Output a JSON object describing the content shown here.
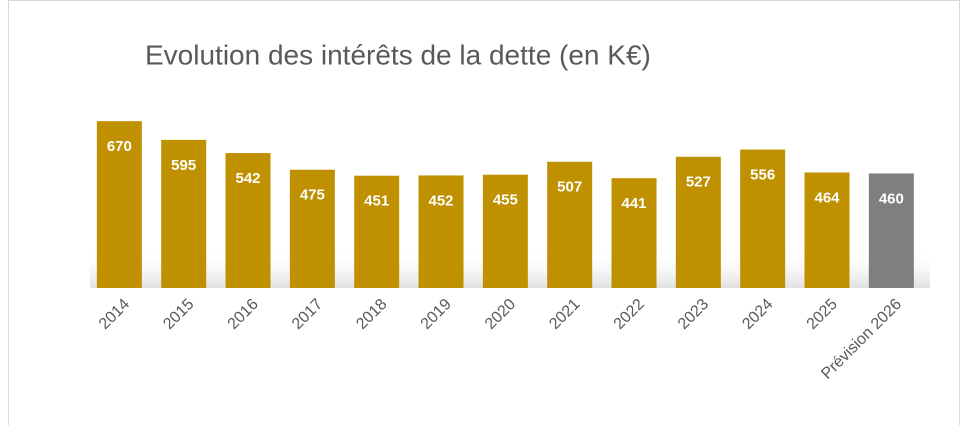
{
  "chart_data": {
    "type": "bar",
    "title": "Evolution des intérêts de la dette (en K€)",
    "categories": [
      "2014",
      "2015",
      "2016",
      "2017",
      "2018",
      "2019",
      "2020",
      "2021",
      "2022",
      "2023",
      "2024",
      "2025",
      "Prévision 2026"
    ],
    "values": [
      670,
      595,
      542,
      475,
      451,
      452,
      455,
      507,
      441,
      527,
      556,
      464,
      460
    ],
    "colors": [
      "#bf9000",
      "#bf9000",
      "#bf9000",
      "#bf9000",
      "#bf9000",
      "#bf9000",
      "#bf9000",
      "#bf9000",
      "#bf9000",
      "#bf9000",
      "#bf9000",
      "#bf9000",
      "#7f7f7f"
    ],
    "ylim": [
      0,
      700
    ]
  }
}
